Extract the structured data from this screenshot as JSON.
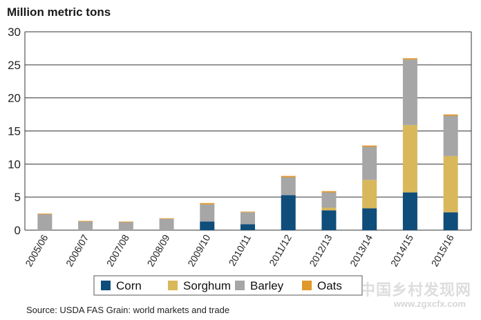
{
  "chart_data": {
    "type": "bar",
    "stacked": true,
    "ylabel": "Million metric tons",
    "ylim": [
      0,
      30
    ],
    "yticks": [
      0,
      5,
      10,
      15,
      20,
      25,
      30
    ],
    "grid": true,
    "legend_position": "bottom",
    "categories": [
      "2005/06",
      "2006/07",
      "2007/08",
      "2008/09",
      "2009/10",
      "2010/11",
      "2011/12",
      "2012/13",
      "2013/14",
      "2014/15",
      "2015/16"
    ],
    "series": [
      {
        "name": "Corn",
        "color": "#0f4d7a",
        "values": [
          0,
          0,
          0,
          0,
          1.3,
          0.9,
          5.3,
          3.0,
          3.3,
          5.7,
          2.7
        ]
      },
      {
        "name": "Sorghum",
        "color": "#d8b85a",
        "values": [
          0,
          0,
          0,
          0,
          0,
          0,
          0,
          0.4,
          4.3,
          10.2,
          8.5
        ]
      },
      {
        "name": "Barley",
        "color": "#a6a6a6",
        "values": [
          2.4,
          1.3,
          1.2,
          1.7,
          2.6,
          1.8,
          2.7,
          2.3,
          5.0,
          9.9,
          6.1
        ]
      },
      {
        "name": "Oats",
        "color": "#e0982b",
        "values": [
          0.1,
          0.1,
          0.1,
          0.1,
          0.2,
          0.1,
          0.2,
          0.2,
          0.2,
          0.2,
          0.2
        ]
      }
    ],
    "source": "Source: USDA FAS Grain: world markets and trade"
  },
  "watermark": {
    "text": "中国乡村发现网",
    "url": "www.zgxcfx.com"
  }
}
